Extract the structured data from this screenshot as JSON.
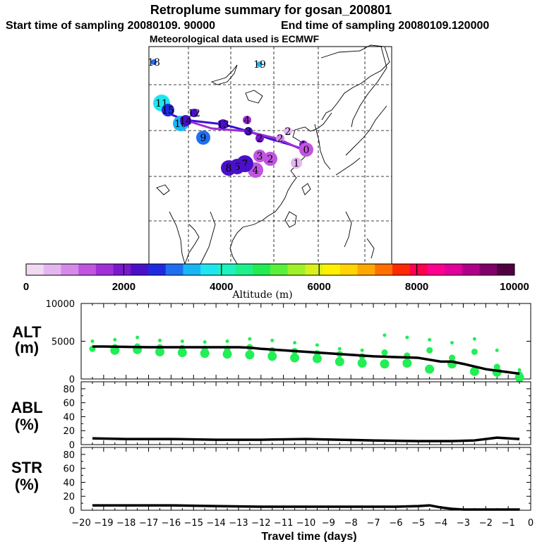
{
  "header": {
    "title": "Retroplume summary for gosan_200801",
    "start": "Start time of sampling 20080109. 90000",
    "end": "End time of sampling 20080109.120000",
    "met": "Meteorological data used is ECMWF"
  },
  "colors": {
    "stops": [
      "#f2d9f2",
      "#e4b6ee",
      "#d58ae8",
      "#c055e0",
      "#a12fd8",
      "#7a18cc",
      "#4a10c8",
      "#1f2ae0",
      "#1f6ff0",
      "#19b6f5",
      "#1ee6f0",
      "#1ef2c0",
      "#1ef08a",
      "#22ec52",
      "#5af03a",
      "#a0f028",
      "#d8f01c",
      "#fff000",
      "#ffd400",
      "#ffa800",
      "#ff7000",
      "#ff2a00",
      "#ff0050",
      "#ff0090",
      "#e0009a",
      "#b00088",
      "#80006a",
      "#500040"
    ],
    "particles": "#22ee55",
    "line": "#000000"
  },
  "colorbar": {
    "ticks": [
      "0",
      "2000",
      "4000",
      "6000",
      "8000",
      "10000"
    ],
    "label": "Altitude (m)"
  },
  "map": {
    "labels": [
      {
        "text": "18",
        "day": 18,
        "alt": 3200
      },
      {
        "text": "19",
        "day": 19,
        "alt": 3500
      },
      {
        "text": "11",
        "day": 11,
        "alt": 3600
      },
      {
        "text": "15",
        "day": 15,
        "alt": 2700
      },
      {
        "text": "12",
        "day": 12,
        "alt": 2400
      },
      {
        "text": "10",
        "day": 10,
        "alt": 3300
      },
      {
        "text": "14",
        "day": 14,
        "alt": 2300
      },
      {
        "text": "13",
        "day": 13,
        "alt": 2200
      },
      {
        "text": "9",
        "day": 9,
        "alt": 3200
      },
      {
        "text": "3",
        "day": 3,
        "alt": 2300
      },
      {
        "text": "4",
        "day": 4,
        "alt": 1500
      },
      {
        "text": "2",
        "day": 2,
        "alt": 2100
      },
      {
        "text": "2",
        "day": 2,
        "alt": 500
      },
      {
        "text": "2",
        "day": 2,
        "alt": 900
      },
      {
        "text": "1",
        "day": 1,
        "alt": 2000
      },
      {
        "text": "1",
        "day": 1,
        "alt": 600
      },
      {
        "text": "0",
        "day": 0,
        "alt": 1100
      },
      {
        "text": "3",
        "day": 3,
        "alt": 1200
      },
      {
        "text": "2",
        "day": 2,
        "alt": 1300
      },
      {
        "text": "4",
        "day": 4,
        "alt": 1400
      },
      {
        "text": "7",
        "day": 7,
        "alt": 2200
      },
      {
        "text": "6",
        "day": 6,
        "alt": 2300
      },
      {
        "text": "8",
        "day": 8,
        "alt": 2400
      }
    ]
  },
  "chart_data": [
    {
      "type": "scatter",
      "name": "ALT",
      "ylabel": "ALT",
      "yunit": "(m)",
      "ylim": [
        0,
        10000
      ],
      "yticks": [
        "10000",
        "5000",
        "0"
      ],
      "xlim": [
        -20,
        0
      ],
      "mean_line": {
        "x": [
          -19.5,
          -19,
          -18,
          -17,
          -16,
          -15,
          -14,
          -13,
          -12.5,
          -12,
          -11,
          -10,
          -9,
          -8,
          -7,
          -6,
          -5,
          -4,
          -3.5,
          -3,
          -2,
          -1,
          -0.5
        ],
        "y": [
          4300,
          4300,
          4250,
          4200,
          4200,
          4200,
          4200,
          4200,
          4150,
          4000,
          3800,
          3600,
          3400,
          3200,
          3000,
          2900,
          2800,
          2300,
          2300,
          2000,
          1300,
          900,
          700
        ]
      },
      "particles": [
        {
          "x": -19.5,
          "y": [
            5000,
            4000
          ]
        },
        {
          "x": -18.5,
          "y": [
            5200,
            4200,
            3800
          ]
        },
        {
          "x": -17.5,
          "y": [
            5500,
            4300,
            3900
          ]
        },
        {
          "x": -16.5,
          "y": [
            5100,
            4200,
            3600
          ]
        },
        {
          "x": -15.5,
          "y": [
            5000,
            4100,
            3500
          ]
        },
        {
          "x": -14.5,
          "y": [
            4900,
            4000,
            3400
          ]
        },
        {
          "x": -13.5,
          "y": [
            5000,
            4000,
            3300
          ]
        },
        {
          "x": -12.5,
          "y": [
            5300,
            4200,
            3200
          ]
        },
        {
          "x": -11.5,
          "y": [
            5100,
            3800,
            3000
          ]
        },
        {
          "x": -10.5,
          "y": [
            4800,
            3700,
            2800
          ]
        },
        {
          "x": -9.5,
          "y": [
            4500,
            3400,
            2700
          ]
        },
        {
          "x": -8.5,
          "y": [
            4000,
            3300,
            2300
          ]
        },
        {
          "x": -7.5,
          "y": [
            3800,
            3000,
            2100
          ]
        },
        {
          "x": -6.5,
          "y": [
            5800,
            3500,
            2000
          ]
        },
        {
          "x": -5.5,
          "y": [
            5500,
            3100,
            2100
          ]
        },
        {
          "x": -4.5,
          "y": [
            5200,
            3800,
            1300
          ]
        },
        {
          "x": -3.5,
          "y": [
            4800,
            2800,
            2000
          ]
        },
        {
          "x": -2.5,
          "y": [
            5300,
            3600,
            1000
          ]
        },
        {
          "x": -1.5,
          "y": [
            3800,
            1600,
            900
          ]
        },
        {
          "x": -0.5,
          "y": [
            1200,
            600,
            200
          ]
        }
      ]
    },
    {
      "type": "line",
      "name": "ABL",
      "ylabel": "ABL",
      "yunit": "(%)",
      "ylim": [
        0,
        90
      ],
      "yticks": [
        "80",
        "60",
        "40",
        "20",
        "0"
      ],
      "x": [
        -19.5,
        -18,
        -16,
        -14,
        -12,
        -10,
        -8.5,
        -7,
        -5,
        -3.5,
        -2.5,
        -1.5,
        -1,
        -0.5
      ],
      "y": [
        9,
        8,
        8,
        7,
        7,
        8,
        7,
        6,
        5,
        5,
        6,
        10,
        9,
        8
      ]
    },
    {
      "type": "line",
      "name": "STR",
      "ylabel": "STR",
      "yunit": "(%)",
      "ylim": [
        0,
        90
      ],
      "yticks": [
        "80",
        "60",
        "40",
        "20",
        "0"
      ],
      "x": [
        -19.5,
        -18,
        -16,
        -14,
        -12,
        -10,
        -8,
        -6,
        -5,
        -4.5,
        -4,
        -3.5,
        -3,
        -2,
        -1,
        -0.5
      ],
      "y": [
        7,
        7,
        7,
        6,
        5,
        5,
        5,
        5,
        6,
        7,
        4,
        2,
        1,
        1,
        1,
        1
      ]
    }
  ],
  "xaxis": {
    "label": "Travel time (days)",
    "ticks": [
      "−20",
      "−19",
      "−18",
      "−17",
      "−16",
      "−15",
      "−14",
      "−13",
      "−12",
      "−11",
      "−10",
      "−9",
      "−8",
      "−7",
      "−6",
      "−5",
      "−4",
      "−3",
      "−2",
      "−1",
      "0"
    ]
  }
}
